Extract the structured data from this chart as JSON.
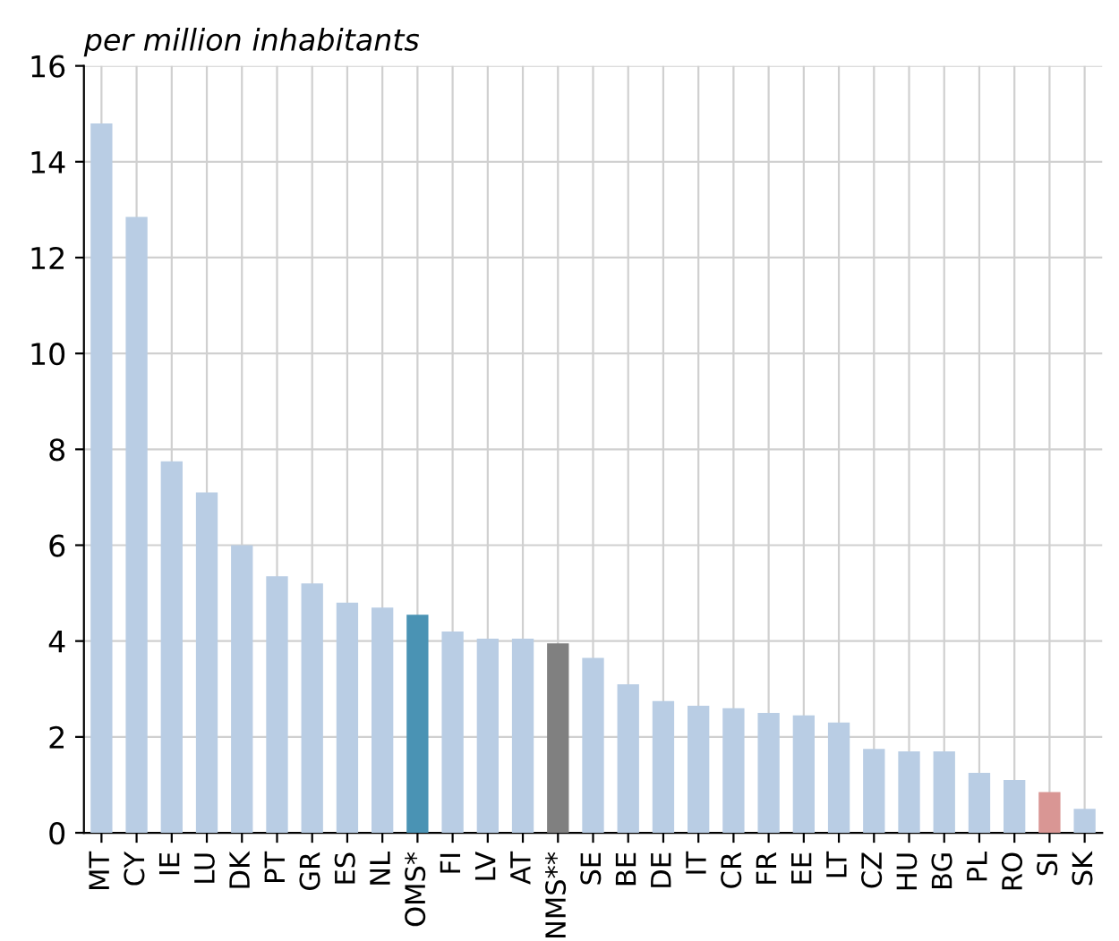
{
  "chart_data": {
    "type": "bar",
    "title": "per million inhabitants",
    "categories": [
      "MT",
      "CY",
      "IE",
      "LU",
      "DK",
      "PT",
      "GR",
      "ES",
      "NL",
      "OMS*",
      "FI",
      "LV",
      "AT",
      "NMS**",
      "SE",
      "BE",
      "DE",
      "IT",
      "CR",
      "FR",
      "EE",
      "LT",
      "CZ",
      "HU",
      "BG",
      "PL",
      "RO",
      "SI",
      "SK"
    ],
    "values": [
      14.8,
      12.85,
      7.75,
      7.1,
      6.0,
      5.35,
      5.2,
      4.8,
      4.7,
      4.55,
      4.2,
      4.05,
      4.05,
      3.95,
      3.65,
      3.1,
      2.75,
      2.65,
      2.6,
      2.5,
      2.45,
      2.3,
      1.75,
      1.7,
      1.7,
      1.25,
      1.1,
      0.85,
      0.5
    ],
    "colors": [
      "#b9cde4",
      "#b9cde4",
      "#b9cde4",
      "#b9cde4",
      "#b9cde4",
      "#b9cde4",
      "#b9cde4",
      "#b9cde4",
      "#b9cde4",
      "#4a93b4",
      "#b9cde4",
      "#b9cde4",
      "#b9cde4",
      "#808080",
      "#b9cde4",
      "#b9cde4",
      "#b9cde4",
      "#b9cde4",
      "#b9cde4",
      "#b9cde4",
      "#b9cde4",
      "#b9cde4",
      "#b9cde4",
      "#b9cde4",
      "#b9cde4",
      "#b9cde4",
      "#b9cde4",
      "#d99694",
      "#b9cde4"
    ],
    "ylim": [
      0,
      16
    ],
    "yticks": [
      0,
      2,
      4,
      6,
      8,
      10,
      12,
      14,
      16
    ],
    "grid": true
  }
}
